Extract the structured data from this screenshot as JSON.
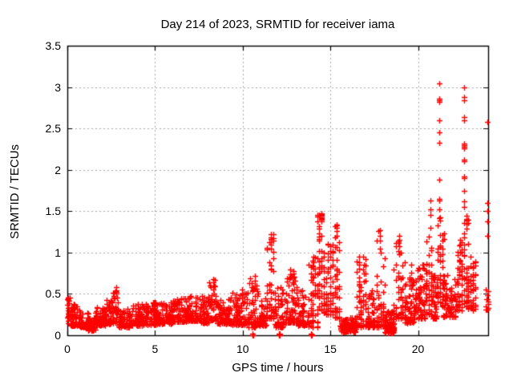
{
  "chart_data": {
    "type": "scatter",
    "title": "Day 214 of 2023, SRMTID for receiver iama",
    "xlabel": "GPS time / hours",
    "ylabel": "SRMTID / TECUs",
    "xlim": [
      0,
      24
    ],
    "ylim": [
      0,
      3.5
    ],
    "xticks": [
      0,
      5,
      10,
      15,
      20
    ],
    "xtick_labels": [
      "0",
      "5",
      "10",
      "15",
      "20"
    ],
    "yticks": [
      0,
      0.5,
      1,
      1.5,
      2,
      2.5,
      3,
      3.5
    ],
    "ytick_labels": [
      "0",
      "0.5",
      "1",
      "1.5",
      "2",
      "2.5",
      "3",
      "3.5"
    ],
    "grid": true,
    "grid_style": "dotted",
    "legend": "none",
    "marker": {
      "shape": "plus",
      "size": 7,
      "color": "#ff0000"
    },
    "colors": {
      "points": "#ff0000",
      "grid": "#a8a8a8",
      "axis": "#000000",
      "text": "#000000",
      "background": "#ffffff"
    },
    "series_name": "SRMTID",
    "seed": 123456789,
    "time_quantum_per_hour": 24,
    "bands_comment": "band = [t_start, t_end, n_points, y_min, y_max, bias] estimated envelope of the dense scatter",
    "bands": [
      [
        0.0,
        0.12,
        26,
        0.15,
        0.47,
        1.2
      ],
      [
        0.12,
        0.7,
        60,
        0.12,
        0.38,
        2
      ],
      [
        0.7,
        1.2,
        55,
        0.1,
        0.32,
        2
      ],
      [
        1.2,
        1.6,
        42,
        0.06,
        0.23,
        1.6
      ],
      [
        1.6,
        2.2,
        65,
        0.12,
        0.35,
        2
      ],
      [
        2.2,
        2.6,
        48,
        0.14,
        0.44,
        2
      ],
      [
        2.6,
        2.9,
        36,
        0.15,
        0.6,
        1.8
      ],
      [
        2.9,
        3.6,
        75,
        0.1,
        0.32,
        2
      ],
      [
        3.6,
        4.4,
        85,
        0.12,
        0.38,
        2
      ],
      [
        4.4,
        5.2,
        85,
        0.13,
        0.4,
        2
      ],
      [
        5.2,
        6.0,
        85,
        0.14,
        0.4,
        2
      ],
      [
        6.0,
        6.8,
        85,
        0.16,
        0.45,
        2
      ],
      [
        6.8,
        7.6,
        85,
        0.17,
        0.48,
        2
      ],
      [
        7.6,
        8.1,
        50,
        0.15,
        0.5,
        2
      ],
      [
        8.1,
        8.45,
        38,
        0.18,
        0.68,
        1.7
      ],
      [
        8.45,
        9.3,
        85,
        0.14,
        0.45,
        2
      ],
      [
        9.3,
        10.3,
        95,
        0.13,
        0.52,
        2.2
      ],
      [
        10.3,
        10.9,
        58,
        0.1,
        0.72,
        2.2
      ],
      [
        10.9,
        11.35,
        46,
        0.12,
        0.45,
        2
      ],
      [
        11.35,
        11.8,
        52,
        0.2,
        1.25,
        2.2
      ],
      [
        11.8,
        12.35,
        55,
        0.1,
        0.6,
        2
      ],
      [
        12.35,
        13.1,
        70,
        0.15,
        0.8,
        2.2
      ],
      [
        13.1,
        13.8,
        65,
        0.12,
        0.55,
        2
      ],
      [
        13.8,
        14.25,
        48,
        0.1,
        0.95,
        2
      ],
      [
        14.25,
        14.65,
        52,
        0.3,
        1.47,
        1.5
      ],
      [
        14.65,
        15.2,
        56,
        0.25,
        1.12,
        2
      ],
      [
        15.2,
        15.55,
        38,
        0.2,
        1.35,
        1.9
      ],
      [
        15.55,
        16.45,
        105,
        0.04,
        0.22,
        1.4
      ],
      [
        16.45,
        17.1,
        65,
        0.1,
        0.95,
        2.2
      ],
      [
        17.1,
        17.55,
        46,
        0.1,
        0.55,
        1.8
      ],
      [
        17.55,
        18.1,
        62,
        0.1,
        1.28,
        2.3
      ],
      [
        18.1,
        18.65,
        75,
        0.03,
        0.3,
        1.8
      ],
      [
        18.25,
        18.55,
        30,
        0.04,
        0.14,
        1
      ],
      [
        18.65,
        19.25,
        70,
        0.2,
        1.2,
        2
      ],
      [
        19.25,
        19.95,
        70,
        0.15,
        0.7,
        2
      ],
      [
        19.95,
        20.45,
        56,
        0.2,
        0.85,
        2
      ],
      [
        20.45,
        20.8,
        42,
        0.25,
        1.2,
        1.8
      ],
      [
        20.8,
        21.1,
        40,
        0.2,
        0.75,
        1.8
      ],
      [
        21.1,
        21.45,
        46,
        0.35,
        1.5,
        1.6
      ],
      [
        21.45,
        22.2,
        75,
        0.22,
        0.75,
        1.8
      ],
      [
        22.2,
        22.55,
        42,
        0.3,
        1.15,
        1.8
      ],
      [
        22.55,
        22.85,
        42,
        0.35,
        1.45,
        1.5
      ],
      [
        22.85,
        23.3,
        50,
        0.3,
        0.95,
        1.8
      ],
      [
        23.85,
        24.0,
        12,
        0.25,
        0.6,
        1
      ]
    ],
    "spikes_comment": "spike = [t_hours, [y values]] explicit point columns read off the plot",
    "spikes": [
      [
        2.78,
        [
          0.5,
          0.54,
          0.58
        ]
      ],
      [
        8.3,
        [
          0.55,
          0.6,
          0.64,
          0.68
        ]
      ],
      [
        9.95,
        [
          0.45,
          0.5,
          0.55
        ]
      ],
      [
        10.55,
        [
          0.0,
          0.02
        ]
      ],
      [
        10.62,
        [
          0.0
        ]
      ],
      [
        10.68,
        [
          0.6,
          0.66,
          0.72
        ]
      ],
      [
        11.6,
        [
          1.05,
          1.12,
          1.18,
          1.22
        ]
      ],
      [
        12.08,
        [
          0.0,
          0.01,
          0.02
        ]
      ],
      [
        12.12,
        [
          0.0,
          0.01,
          0.02
        ]
      ],
      [
        12.9,
        [
          0.62,
          0.7,
          0.78
        ]
      ],
      [
        13.88,
        [
          0.0,
          0.01,
          0.02
        ]
      ],
      [
        13.92,
        [
          0.0,
          0.01
        ]
      ],
      [
        14.05,
        [
          0.7,
          0.8,
          0.88,
          0.95
        ]
      ],
      [
        14.5,
        [
          1.38,
          1.4,
          1.42,
          1.43,
          1.44,
          1.45,
          1.46,
          1.47
        ]
      ],
      [
        15.0,
        [
          0.95,
          1.02,
          1.08
        ]
      ],
      [
        15.38,
        [
          1.2,
          1.26,
          1.3,
          1.33
        ]
      ],
      [
        16.62,
        [
          0.7,
          0.8,
          0.88,
          0.95
        ]
      ],
      [
        16.9,
        [
          0.65,
          0.75,
          0.85
        ]
      ],
      [
        17.82,
        [
          1.05,
          1.14,
          1.2,
          1.27
        ]
      ],
      [
        18.92,
        [
          0.98,
          1.08,
          1.15,
          1.2
        ]
      ],
      [
        19.6,
        [
          0.68,
          0.76,
          0.85
        ]
      ],
      [
        20.7,
        [
          1.3,
          1.45,
          1.52,
          1.63
        ]
      ],
      [
        21.2,
        [
          1.42,
          1.52,
          1.63,
          1.65,
          1.88,
          2.33,
          2.45,
          2.6,
          2.82,
          2.84,
          2.86,
          3.04
        ]
      ],
      [
        22.4,
        [
          0.9,
          1.0,
          1.1,
          1.15
        ]
      ],
      [
        22.65,
        [
          1.55,
          1.62,
          1.75,
          1.9,
          1.92,
          2.1,
          2.12,
          2.26,
          2.28,
          2.3,
          2.32,
          2.6,
          2.64,
          2.84,
          2.88,
          3.0
        ]
      ],
      [
        23.95,
        [
          1.2,
          1.38,
          1.5,
          1.6,
          2.58
        ]
      ]
    ]
  }
}
